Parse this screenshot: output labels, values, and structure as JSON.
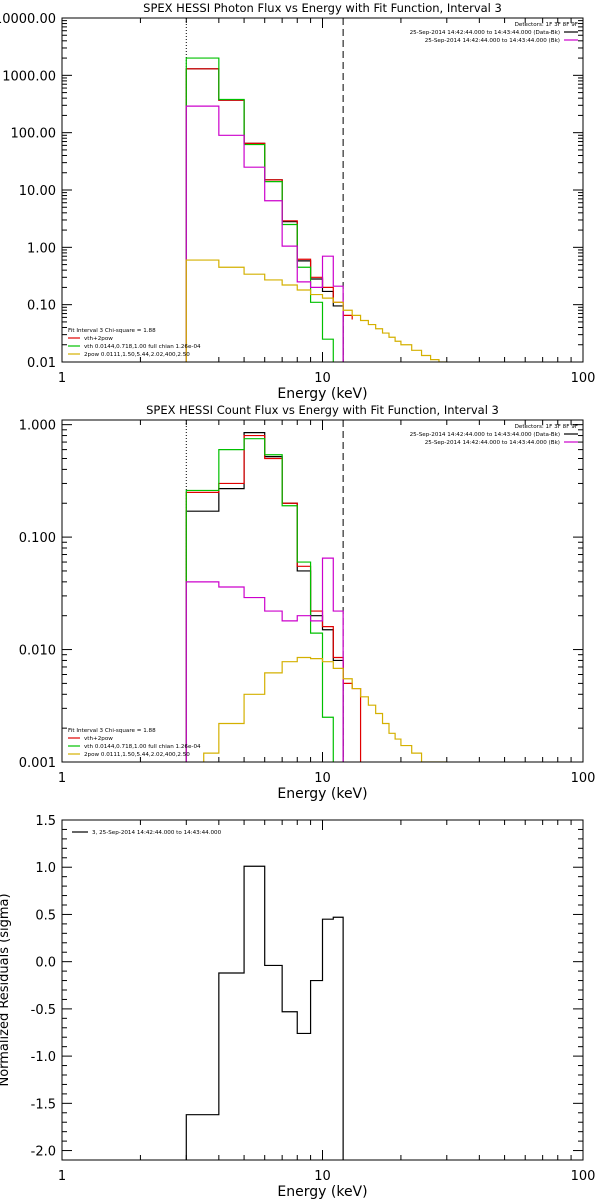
{
  "chart_data": [
    {
      "type": "line",
      "title": "SPEX HESSI Photon Flux vs Energy with Fit Function, Interval 3",
      "xlabel": "Energy (keV)",
      "ylabel": "",
      "xscale": "log",
      "yscale": "log",
      "xlim": [
        1,
        100
      ],
      "ylim": [
        0.01,
        10000
      ],
      "x_tick_labels": [
        "1",
        "10",
        "100"
      ],
      "y_tick_labels": [
        "0.01",
        "0.10",
        "1.00",
        "10.00",
        "100.00",
        "1000.00",
        "10000.00"
      ],
      "vlines": [
        {
          "x": 3.0,
          "style": "dotted"
        },
        {
          "x": 12.0,
          "style": "dashed"
        }
      ],
      "legend_top": {
        "header": "Detectors: 1F 3F 8F 9F",
        "entries": [
          {
            "text": "25-Sep-2014 14:42:44.000 to 14:43:44.000 (Data-Bk)",
            "color": "#000000"
          },
          {
            "text": "25-Sep-2014 14:42:44.000 to 14:43:44.000 (Bk)",
            "color": "#cc00cc"
          }
        ]
      },
      "legend_bottom": {
        "header": "Fit Interval 3   Chi-square = 1.88",
        "entries": [
          {
            "text": "vth+2pow",
            "color": "#e00000"
          },
          {
            "text": "vth 0.0144,0.718,1.00  full chian 1.26e-04",
            "color": "#00c000"
          },
          {
            "text": "2pow 0.0111,1.50,5.44,2.02,400,2.50",
            "color": "#d4b000"
          }
        ]
      },
      "series": [
        {
          "color": "#000000",
          "edges": [
            3.0,
            4.0,
            5.0,
            6.0,
            7.0,
            8.0,
            9.0,
            10.0,
            11.0,
            12.0
          ],
          "values": [
            1300,
            370,
            65,
            15,
            2.8,
            0.58,
            0.28,
            0.17,
            0.095
          ]
        },
        {
          "color": "#e00000",
          "edges": [
            3.0,
            4.0,
            5.0,
            6.0,
            7.0,
            8.0,
            9.0,
            10.0,
            11.0,
            12.0,
            13.0
          ],
          "values": [
            1300,
            370,
            65,
            15,
            2.9,
            0.62,
            0.3,
            0.2,
            0.11,
            0.065,
            0.055
          ]
        },
        {
          "color": "#00c000",
          "edges": [
            3.0,
            4.0,
            5.0,
            6.0,
            7.0,
            8.0,
            9.0,
            10.0,
            11.0
          ],
          "values": [
            2000,
            380,
            62,
            14,
            2.5,
            0.45,
            0.11,
            0.025
          ]
        },
        {
          "color": "#cc00cc",
          "edges": [
            3.0,
            4.0,
            5.0,
            6.0,
            7.0,
            8.0,
            9.0,
            10.0,
            11.0,
            12.0
          ],
          "values": [
            290,
            90,
            25,
            6.5,
            1.05,
            0.25,
            0.2,
            0.7,
            0.21
          ]
        },
        {
          "color": "#d4b000",
          "edges": [
            3.0,
            4.0,
            5.0,
            6.0,
            7.0,
            8.0,
            9.0,
            10.0,
            11.0,
            12.0,
            13.0,
            14.0,
            15.0,
            16.0,
            17.0,
            18.0,
            19.0,
            20.0,
            22.0,
            24.0,
            26.0,
            28.0,
            30.0
          ],
          "values": [
            0.6,
            0.45,
            0.34,
            0.27,
            0.22,
            0.18,
            0.15,
            0.13,
            0.11,
            0.08,
            0.065,
            0.053,
            0.045,
            0.038,
            0.032,
            0.027,
            0.023,
            0.02,
            0.016,
            0.013,
            0.011,
            0.01
          ]
        }
      ]
    },
    {
      "type": "line",
      "title": "SPEX HESSI Count Flux vs Energy with Fit Function, Interval 3",
      "xlabel": "Energy (keV)",
      "ylabel": "",
      "xscale": "log",
      "yscale": "log",
      "xlim": [
        1,
        100
      ],
      "ylim": [
        0.001,
        1.1
      ],
      "x_tick_labels": [
        "1",
        "10",
        "100"
      ],
      "y_tick_labels": [
        "0.001",
        "0.010",
        "0.100",
        "1.000"
      ],
      "vlines": [
        {
          "x": 3.0,
          "style": "dotted"
        },
        {
          "x": 12.0,
          "style": "dashed"
        }
      ],
      "legend_top": {
        "header": "Detectors: 1F 3F 8F 9F",
        "entries": [
          {
            "text": "25-Sep-2014 14:42:44.000 to 14:43:44.000 (Data-Bk)",
            "color": "#000000"
          },
          {
            "text": "25-Sep-2014 14:42:44.000 to 14:43:44.000 (Bk)",
            "color": "#cc00cc"
          }
        ]
      },
      "legend_bottom": {
        "header": "Fit Interval 3   Chi-square = 1.88",
        "entries": [
          {
            "text": "vth+2pow",
            "color": "#e00000"
          },
          {
            "text": "vth 0.0144,0.718,1.00  full chian 1.26e-04",
            "color": "#00c000"
          },
          {
            "text": "2pow 0.0111,1.50,5.44,2.02,400,2.50",
            "color": "#d4b000"
          }
        ]
      },
      "series": [
        {
          "color": "#000000",
          "edges": [
            3.0,
            4.0,
            5.0,
            6.0,
            7.0,
            8.0,
            9.0,
            10.0,
            11.0,
            12.0
          ],
          "values": [
            0.17,
            0.27,
            0.85,
            0.52,
            0.2,
            0.05,
            0.02,
            0.015,
            0.008
          ]
        },
        {
          "color": "#e00000",
          "edges": [
            3.0,
            4.0,
            5.0,
            6.0,
            7.0,
            8.0,
            9.0,
            10.0,
            11.0,
            12.0,
            13.0,
            14.0
          ],
          "values": [
            0.25,
            0.3,
            0.8,
            0.5,
            0.2,
            0.055,
            0.022,
            0.016,
            0.0085,
            0.005,
            0.0045
          ]
        },
        {
          "color": "#00c000",
          "edges": [
            3.0,
            4.0,
            5.0,
            6.0,
            7.0,
            8.0,
            9.0,
            10.0,
            11.0
          ],
          "values": [
            0.26,
            0.6,
            0.75,
            0.54,
            0.19,
            0.06,
            0.014,
            0.0025
          ]
        },
        {
          "color": "#cc00cc",
          "edges": [
            3.0,
            4.0,
            5.0,
            6.0,
            7.0,
            8.0,
            9.0,
            10.0,
            11.0,
            12.0
          ],
          "values": [
            0.04,
            0.036,
            0.029,
            0.022,
            0.018,
            0.02,
            0.018,
            0.065,
            0.022
          ]
        },
        {
          "color": "#d4b000",
          "edges": [
            3.5,
            4.0,
            5.0,
            6.0,
            7.0,
            8.0,
            9.0,
            10.0,
            11.0,
            12.0,
            13.0,
            14.0,
            15.0,
            16.0,
            17.0,
            18.0,
            19.0,
            20.0,
            22.0,
            24.0,
            26.0,
            28.0,
            30.0
          ],
          "values": [
            0.0012,
            0.0022,
            0.004,
            0.0062,
            0.0078,
            0.0085,
            0.0083,
            0.0078,
            0.0068,
            0.0055,
            0.0045,
            0.0038,
            0.0032,
            0.0027,
            0.0022,
            0.0018,
            0.0016,
            0.0014,
            0.0012,
            0.001,
            0.0009,
            0.0008
          ]
        }
      ]
    },
    {
      "type": "line",
      "title": "",
      "xlabel": "Energy (keV)",
      "ylabel": "Normalized Residuals (sigma)",
      "xscale": "log",
      "yscale": "linear",
      "xlim": [
        1,
        100
      ],
      "ylim": [
        -2.1,
        1.5
      ],
      "x_tick_labels": [
        "1",
        "10",
        "100"
      ],
      "y_tick_labels": [
        "-2.0",
        "-1.5",
        "-1.0",
        "-0.5",
        "0.0",
        "0.5",
        "1.0",
        "1.5"
      ],
      "vlines": [],
      "legend_top": {
        "header": "",
        "entries": [
          {
            "text": "3, 25-Sep-2014 14:42:44.000 to 14:43:44.000",
            "color": "#000000"
          }
        ]
      },
      "legend_bottom": {
        "header": "",
        "entries": []
      },
      "series": [
        {
          "color": "#000000",
          "edges": [
            3.0,
            4.0,
            5.0,
            6.0,
            7.0,
            8.0,
            9.0,
            10.0,
            11.0,
            12.0
          ],
          "values": [
            -1.62,
            -0.12,
            1.01,
            -0.04,
            -0.53,
            -0.76,
            -0.2,
            0.45,
            0.47
          ]
        }
      ]
    }
  ]
}
